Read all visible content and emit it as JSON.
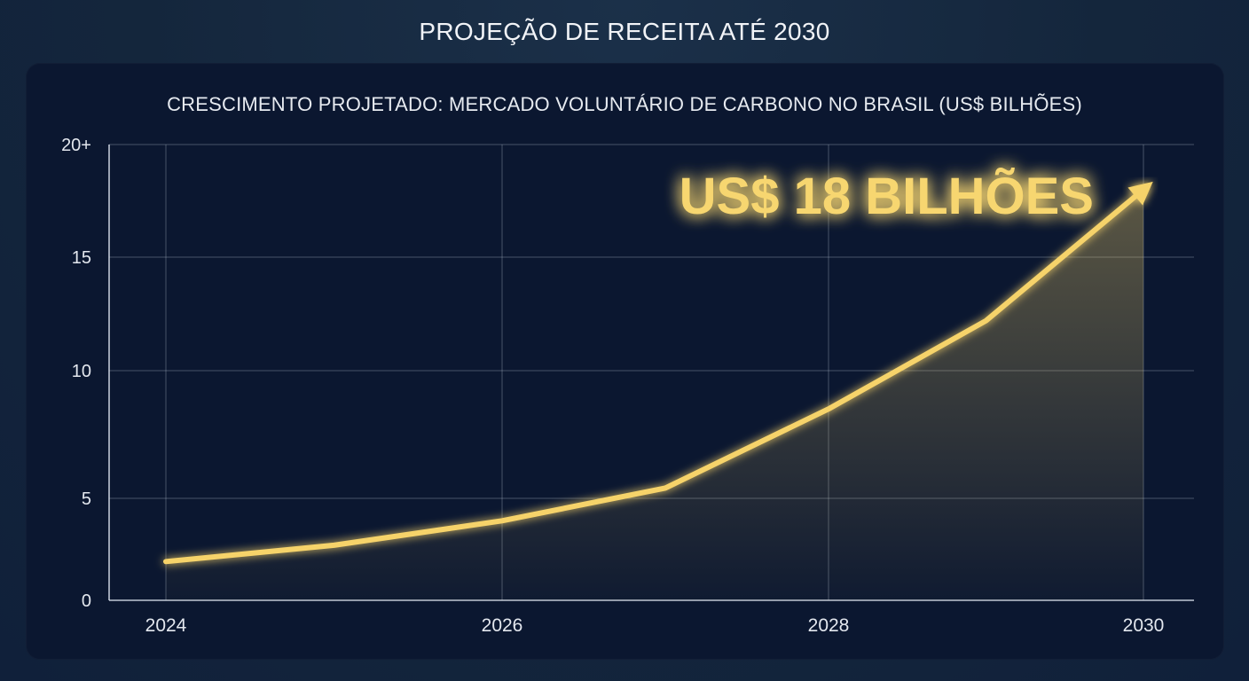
{
  "page_title": "PROJEÇÃO DE RECEITA ATÉ 2030",
  "chart_data": {
    "type": "area",
    "title": "CRESCIMENTO PROJETADO: MERCADO VOLUNTÁRIO DE CARBONO NO BRASIL (US$ BILHÕES)",
    "xlabel": "",
    "ylabel": "",
    "x": [
      2024,
      2025,
      2026,
      2027,
      2028,
      2029,
      2030
    ],
    "series": [
      {
        "values": [
          1.9,
          2.7,
          3.9,
          5.4,
          8.5,
          12.2,
          18.0
        ]
      }
    ],
    "x_ticks": [
      "2024",
      "2026",
      "2028",
      "2030"
    ],
    "x_tick_values": [
      2024,
      2026,
      2028,
      2030
    ],
    "y_ticks": [
      "0",
      "5",
      "10",
      "15",
      "20+"
    ],
    "y_tick_values": [
      0,
      5,
      10,
      15,
      20
    ],
    "xlim": [
      2024,
      2030
    ],
    "ylim": [
      0,
      20
    ],
    "grid": true,
    "line_color": "#f6d36a",
    "annotation": {
      "text": "US$ 18 BILHÕES",
      "x": 2030,
      "y": 18
    }
  }
}
